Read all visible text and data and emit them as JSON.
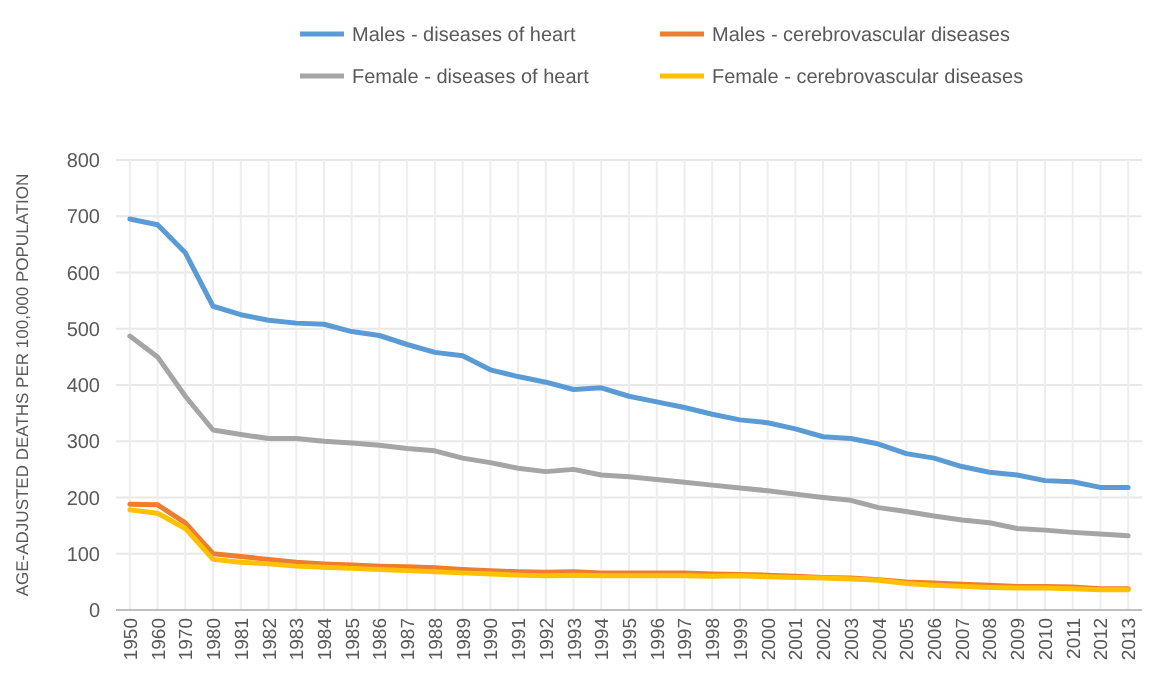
{
  "chart_data": {
    "type": "line",
    "ylabel": "AGE-ADJUSTED DEATHS PER 100,000 POPULATION",
    "categories": [
      "1950",
      "1960",
      "1970",
      "1980",
      "1981",
      "1982",
      "1983",
      "1984",
      "1985",
      "1986",
      "1987",
      "1988",
      "1989",
      "1990",
      "1991",
      "1992",
      "1993",
      "1994",
      "1995",
      "1996",
      "1997",
      "1998",
      "1999",
      "2000",
      "2001",
      "2002",
      "2003",
      "2004",
      "2005",
      "2006",
      "2007",
      "2008",
      "2009",
      "2010",
      "2011",
      "2012",
      "2013"
    ],
    "series": [
      {
        "name": "Males - diseases of heart",
        "color": "#5b9bd5",
        "values": [
          695,
          685,
          635,
          540,
          525,
          515,
          510,
          508,
          495,
          488,
          472,
          458,
          452,
          427,
          415,
          405,
          392,
          395,
          380,
          370,
          360,
          348,
          338,
          333,
          322,
          308,
          305,
          295,
          278,
          270,
          255,
          245,
          240,
          230,
          228,
          218,
          218
        ]
      },
      {
        "name": "Males - cerebrovascular diseases",
        "color": "#ed7d31",
        "values": [
          188,
          187,
          155,
          100,
          95,
          90,
          85,
          82,
          80,
          78,
          77,
          75,
          72,
          70,
          68,
          67,
          68,
          66,
          66,
          66,
          66,
          64,
          63,
          62,
          60,
          58,
          57,
          54,
          50,
          48,
          46,
          44,
          42,
          42,
          41,
          38,
          38
        ]
      },
      {
        "name": "Female - diseases of heart",
        "color": "#a5a5a5",
        "values": [
          487,
          450,
          380,
          320,
          312,
          305,
          305,
          300,
          297,
          293,
          287,
          283,
          270,
          262,
          252,
          246,
          250,
          240,
          237,
          232,
          227,
          222,
          217,
          212,
          206,
          200,
          195,
          182,
          175,
          167,
          160,
          155,
          145,
          142,
          138,
          135,
          132
        ]
      },
      {
        "name": "Female - cerebrovascular diseases",
        "color": "#ffc000",
        "values": [
          178,
          172,
          145,
          90,
          85,
          82,
          78,
          76,
          74,
          72,
          70,
          68,
          66,
          64,
          62,
          61,
          62,
          61,
          61,
          61,
          61,
          60,
          61,
          59,
          58,
          57,
          55,
          53,
          47,
          44,
          42,
          40,
          39,
          39,
          38,
          36,
          36
        ]
      }
    ],
    "ylim": [
      0,
      800
    ],
    "yticks": [
      0,
      100,
      200,
      300,
      400,
      500,
      600,
      700,
      800
    ],
    "grid": true,
    "legend": "top",
    "marker": "none",
    "line_style": "solid"
  }
}
